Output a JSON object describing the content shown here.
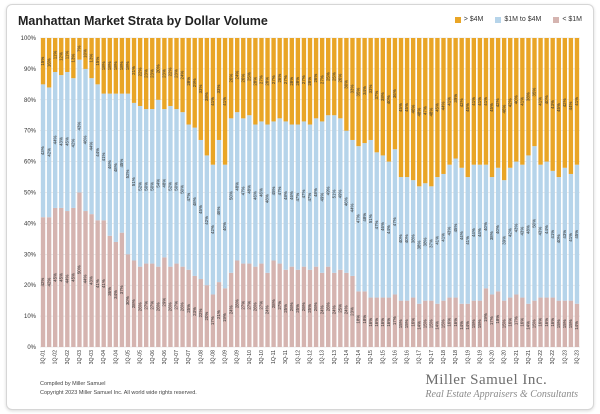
{
  "colors": {
    "over4m": "#e9a526",
    "mid": "#b6d4ea",
    "under1m": "#d5b4b0",
    "grid": "#d9d9d9"
  },
  "footer": {
    "compiled_by": "Compiled by Miller Samuel",
    "copyright": "Copyright 2023 Miller Samuel Inc. All world wide rights reserved."
  },
  "brand": {
    "name": "Miller Samuel Inc.",
    "tagline": "Real Estate Appraisers & Consultants"
  },
  "chart_data": {
    "type": "bar",
    "stacked": true,
    "percent": true,
    "title": "Manhattan Market Strata by Dollar Volume",
    "legend": [
      "> $4M",
      "$1M to $4M",
      "< $1M"
    ],
    "legend_position": "top-right",
    "ylim": [
      0,
      100
    ],
    "yticks": [
      "0%",
      "10%",
      "20%",
      "30%",
      "40%",
      "50%",
      "60%",
      "70%",
      "80%",
      "90%",
      "100%"
    ],
    "xtick_labels": [
      "3Q-01",
      "1Q-02",
      "3Q-02",
      "1Q-03",
      "3Q-03",
      "1Q-04",
      "3Q-04",
      "1Q-05",
      "3Q-05",
      "1Q-06",
      "3Q-06",
      "1Q-07",
      "3Q-07",
      "1Q-08",
      "3Q-08",
      "1Q-09",
      "3Q-09",
      "1Q-10",
      "3Q-10",
      "1Q-11",
      "3Q-11",
      "1Q-12",
      "3Q-12",
      "1Q-13",
      "3Q-13",
      "1Q-14",
      "3Q-14",
      "1Q-15",
      "3Q-15",
      "1Q-16",
      "3Q-16",
      "1Q-17",
      "3Q-17",
      "1Q-18",
      "3Q-18",
      "1Q-19",
      "3Q-19",
      "1Q-20",
      "3Q-20",
      "1Q-21",
      "3Q-21",
      "1Q-22",
      "3Q-22",
      "1Q-23",
      "3Q-23"
    ],
    "categories": [
      "3Q-01",
      "4Q-01",
      "1Q-02",
      "2Q-02",
      "3Q-02",
      "4Q-02",
      "1Q-03",
      "2Q-03",
      "3Q-03",
      "4Q-03",
      "1Q-04",
      "2Q-04",
      "3Q-04",
      "4Q-04",
      "1Q-05",
      "2Q-05",
      "3Q-05",
      "4Q-05",
      "1Q-06",
      "2Q-06",
      "3Q-06",
      "4Q-06",
      "1Q-07",
      "2Q-07",
      "3Q-07",
      "4Q-07",
      "1Q-08",
      "2Q-08",
      "3Q-08",
      "4Q-08",
      "1Q-09",
      "2Q-09",
      "3Q-09",
      "4Q-09",
      "1Q-10",
      "2Q-10",
      "3Q-10",
      "4Q-10",
      "1Q-11",
      "2Q-11",
      "3Q-11",
      "4Q-11",
      "1Q-12",
      "2Q-12",
      "3Q-12",
      "4Q-12",
      "1Q-13",
      "2Q-13",
      "3Q-13",
      "4Q-13",
      "1Q-14",
      "2Q-14",
      "3Q-14",
      "4Q-14",
      "1Q-15",
      "2Q-15",
      "3Q-15",
      "4Q-15",
      "1Q-16",
      "2Q-16",
      "3Q-16",
      "4Q-16",
      "1Q-17",
      "2Q-17",
      "3Q-17",
      "4Q-17",
      "1Q-18",
      "2Q-18",
      "3Q-18",
      "4Q-18",
      "1Q-19",
      "2Q-19",
      "3Q-19",
      "4Q-19",
      "1Q-20",
      "2Q-20",
      "3Q-20",
      "4Q-20",
      "1Q-21",
      "2Q-21",
      "3Q-21",
      "4Q-21",
      "1Q-22",
      "2Q-22",
      "3Q-22",
      "4Q-22",
      "1Q-23",
      "2Q-23",
      "3Q-23"
    ],
    "series": [
      {
        "name": "< $1M",
        "values": [
          42,
          42,
          45,
          45,
          44,
          45,
          50,
          44,
          43,
          41,
          41,
          36,
          34,
          37,
          30,
          28,
          26,
          27,
          27,
          26,
          29,
          26,
          27,
          26,
          25,
          23,
          22,
          20,
          17,
          21,
          19,
          24,
          28,
          27,
          27,
          26,
          27,
          24,
          28,
          27,
          25,
          26,
          25,
          26,
          25,
          26,
          24,
          26,
          24,
          25,
          24,
          23,
          18,
          18,
          16,
          16,
          16,
          16,
          17,
          15,
          15,
          16,
          14,
          15,
          15,
          14,
          15,
          16,
          16,
          14,
          14,
          15,
          15,
          19,
          17,
          18,
          15,
          16,
          17,
          16,
          14,
          15,
          16,
          16,
          16,
          15,
          15,
          15,
          14
        ]
      },
      {
        "name": "$1M to $4M",
        "values": [
          43,
          42,
          44,
          43,
          45,
          42,
          43,
          46,
          44,
          44,
          41,
          46,
          48,
          45,
          52,
          51,
          52,
          50,
          50,
          54,
          48,
          52,
          50,
          50,
          47,
          48,
          45,
          42,
          42,
          46,
          40,
          50,
          48,
          47,
          48,
          46,
          46,
          48,
          45,
          47,
          48,
          46,
          47,
          47,
          47,
          48,
          49,
          49,
          51,
          49,
          46,
          44,
          47,
          48,
          51,
          47,
          46,
          44,
          47,
          40,
          40,
          38,
          38,
          38,
          37,
          41,
          41,
          43,
          45,
          44,
          41,
          44,
          44,
          40,
          38,
          40,
          39,
          42,
          43,
          43,
          48,
          50,
          43,
          44,
          41,
          40,
          43,
          41,
          45
        ]
      },
      {
        "name": "> $4M",
        "values": [
          15,
          16,
          11,
          12,
          11,
          13,
          7,
          10,
          13,
          15,
          18,
          18,
          18,
          18,
          18,
          21,
          22,
          23,
          23,
          20,
          23,
          22,
          23,
          24,
          28,
          29,
          33,
          38,
          41,
          33,
          41,
          26,
          24,
          26,
          25,
          28,
          27,
          28,
          27,
          26,
          27,
          28,
          28,
          27,
          28,
          26,
          27,
          25,
          25,
          26,
          30,
          33,
          35,
          34,
          33,
          37,
          38,
          40,
          36,
          45,
          45,
          46,
          48,
          47,
          48,
          45,
          44,
          41,
          39,
          42,
          45,
          41,
          41,
          41,
          45,
          42,
          46,
          42,
          40,
          41,
          38,
          35,
          41,
          40,
          43,
          45,
          42,
          44,
          41
        ]
      }
    ]
  }
}
